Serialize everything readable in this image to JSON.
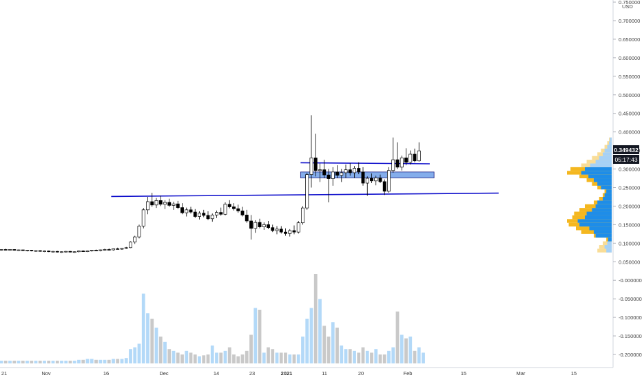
{
  "header": {
    "currency": "USD"
  },
  "badges": {
    "price": "0.349432",
    "countdown": "05:17:43"
  },
  "chart_data": {
    "type": "candlestick",
    "price_axis": {
      "labels": [
        "0.750000",
        "0.700000",
        "0.650000",
        "0.600000",
        "0.550000",
        "0.500000",
        "0.450000",
        "0.400000",
        "0.350000",
        "0.300000",
        "0.250000",
        "0.200000",
        "0.150000",
        "0.100000",
        "0.050000",
        "-0.000000",
        "-0.050000",
        "-0.100000",
        "-0.150000",
        "-0.200000"
      ],
      "values": [
        0.75,
        0.7,
        0.65,
        0.6,
        0.55,
        0.5,
        0.45,
        0.4,
        0.35,
        0.3,
        0.25,
        0.2,
        0.15,
        0.1,
        0.05,
        0,
        -0.05,
        -0.1,
        -0.15,
        -0.2
      ],
      "range": [
        -0.22,
        0.76
      ]
    },
    "time_axis": {
      "labels": [
        "21",
        "Nov",
        "16",
        "Dec",
        "14",
        "23",
        "2021",
        "11",
        "20",
        "Feb",
        "15",
        "Mar",
        "15"
      ],
      "bold": [
        "2021"
      ]
    },
    "candles": [
      [
        0.082,
        0.084,
        0.08,
        0.083
      ],
      [
        0.083,
        0.085,
        0.081,
        0.082
      ],
      [
        0.082,
        0.084,
        0.08,
        0.083
      ],
      [
        0.083,
        0.084,
        0.08,
        0.081
      ],
      [
        0.081,
        0.083,
        0.079,
        0.082
      ],
      [
        0.082,
        0.083,
        0.079,
        0.08
      ],
      [
        0.08,
        0.082,
        0.078,
        0.081
      ],
      [
        0.081,
        0.082,
        0.078,
        0.079
      ],
      [
        0.079,
        0.081,
        0.077,
        0.08
      ],
      [
        0.08,
        0.081,
        0.077,
        0.078
      ],
      [
        0.078,
        0.08,
        0.076,
        0.079
      ],
      [
        0.079,
        0.08,
        0.076,
        0.077
      ],
      [
        0.077,
        0.079,
        0.075,
        0.078
      ],
      [
        0.078,
        0.079,
        0.075,
        0.076
      ],
      [
        0.076,
        0.078,
        0.074,
        0.077
      ],
      [
        0.077,
        0.079,
        0.075,
        0.078
      ],
      [
        0.078,
        0.079,
        0.075,
        0.076
      ],
      [
        0.076,
        0.078,
        0.074,
        0.077
      ],
      [
        0.077,
        0.08,
        0.075,
        0.079
      ],
      [
        0.079,
        0.081,
        0.077,
        0.078
      ],
      [
        0.078,
        0.08,
        0.076,
        0.079
      ],
      [
        0.079,
        0.082,
        0.077,
        0.081
      ],
      [
        0.081,
        0.083,
        0.079,
        0.08
      ],
      [
        0.08,
        0.083,
        0.078,
        0.082
      ],
      [
        0.082,
        0.085,
        0.08,
        0.083
      ],
      [
        0.083,
        0.086,
        0.081,
        0.082
      ],
      [
        0.082,
        0.086,
        0.08,
        0.085
      ],
      [
        0.085,
        0.088,
        0.083,
        0.084
      ],
      [
        0.084,
        0.087,
        0.082,
        0.086
      ],
      [
        0.086,
        0.09,
        0.084,
        0.088
      ],
      [
        0.088,
        0.105,
        0.087,
        0.103
      ],
      [
        0.103,
        0.12,
        0.098,
        0.117
      ],
      [
        0.117,
        0.15,
        0.113,
        0.146
      ],
      [
        0.146,
        0.195,
        0.14,
        0.19
      ],
      [
        0.19,
        0.225,
        0.178,
        0.212
      ],
      [
        0.212,
        0.236,
        0.198,
        0.203
      ],
      [
        0.203,
        0.222,
        0.195,
        0.215
      ],
      [
        0.215,
        0.228,
        0.2,
        0.205
      ],
      [
        0.205,
        0.216,
        0.192,
        0.21
      ],
      [
        0.21,
        0.22,
        0.198,
        0.202
      ],
      [
        0.202,
        0.212,
        0.19,
        0.206
      ],
      [
        0.206,
        0.214,
        0.192,
        0.196
      ],
      [
        0.196,
        0.208,
        0.178,
        0.182
      ],
      [
        0.182,
        0.196,
        0.172,
        0.19
      ],
      [
        0.19,
        0.198,
        0.18,
        0.184
      ],
      [
        0.184,
        0.192,
        0.168,
        0.172
      ],
      [
        0.172,
        0.186,
        0.164,
        0.181
      ],
      [
        0.181,
        0.19,
        0.17,
        0.175
      ],
      [
        0.175,
        0.186,
        0.162,
        0.166
      ],
      [
        0.166,
        0.18,
        0.158,
        0.176
      ],
      [
        0.176,
        0.188,
        0.168,
        0.183
      ],
      [
        0.183,
        0.196,
        0.174,
        0.178
      ],
      [
        0.178,
        0.21,
        0.175,
        0.205
      ],
      [
        0.205,
        0.216,
        0.194,
        0.198
      ],
      [
        0.198,
        0.208,
        0.188,
        0.193
      ],
      [
        0.193,
        0.204,
        0.182,
        0.187
      ],
      [
        0.187,
        0.198,
        0.172,
        0.176
      ],
      [
        0.176,
        0.19,
        0.155,
        0.16
      ],
      [
        0.16,
        0.176,
        0.11,
        0.14
      ],
      [
        0.14,
        0.162,
        0.128,
        0.156
      ],
      [
        0.156,
        0.166,
        0.14,
        0.144
      ],
      [
        0.144,
        0.156,
        0.136,
        0.15
      ],
      [
        0.15,
        0.16,
        0.138,
        0.142
      ],
      [
        0.142,
        0.15,
        0.13,
        0.134
      ],
      [
        0.134,
        0.146,
        0.124,
        0.138
      ],
      [
        0.138,
        0.146,
        0.126,
        0.13
      ],
      [
        0.13,
        0.14,
        0.12,
        0.126
      ],
      [
        0.126,
        0.138,
        0.118,
        0.134
      ],
      [
        0.134,
        0.148,
        0.124,
        0.13
      ],
      [
        0.13,
        0.16,
        0.126,
        0.155
      ],
      [
        0.155,
        0.2,
        0.15,
        0.195
      ],
      [
        0.195,
        0.29,
        0.19,
        0.285
      ],
      [
        0.285,
        0.445,
        0.25,
        0.33
      ],
      [
        0.33,
        0.395,
        0.28,
        0.296
      ],
      [
        0.296,
        0.315,
        0.265,
        0.298
      ],
      [
        0.298,
        0.325,
        0.275,
        0.284
      ],
      [
        0.284,
        0.3,
        0.21,
        0.274
      ],
      [
        0.274,
        0.305,
        0.255,
        0.292
      ],
      [
        0.292,
        0.31,
        0.275,
        0.283
      ],
      [
        0.283,
        0.3,
        0.265,
        0.29
      ],
      [
        0.29,
        0.312,
        0.276,
        0.298
      ],
      [
        0.298,
        0.316,
        0.282,
        0.29
      ],
      [
        0.29,
        0.308,
        0.276,
        0.302
      ],
      [
        0.302,
        0.318,
        0.286,
        0.292
      ],
      [
        0.292,
        0.305,
        0.255,
        0.262
      ],
      [
        0.262,
        0.28,
        0.228,
        0.275
      ],
      [
        0.275,
        0.288,
        0.262,
        0.268
      ],
      [
        0.268,
        0.282,
        0.256,
        0.276
      ],
      [
        0.276,
        0.285,
        0.262,
        0.266
      ],
      [
        0.266,
        0.272,
        0.23,
        0.24
      ],
      [
        0.24,
        0.305,
        0.236,
        0.296
      ],
      [
        0.296,
        0.385,
        0.29,
        0.325
      ],
      [
        0.325,
        0.372,
        0.3,
        0.305
      ],
      [
        0.305,
        0.336,
        0.296,
        0.33
      ],
      [
        0.33,
        0.356,
        0.31,
        0.318
      ],
      [
        0.318,
        0.35,
        0.312,
        0.34
      ],
      [
        0.34,
        0.355,
        0.318,
        0.322
      ],
      [
        0.322,
        0.372,
        0.32,
        0.349
      ]
    ],
    "volume": [
      0.03,
      0.03,
      0.03,
      0.03,
      0.03,
      0.03,
      0.03,
      0.03,
      0.03,
      0.03,
      0.03,
      0.03,
      0.03,
      0.03,
      0.03,
      0.03,
      0.03,
      0.03,
      0.04,
      0.04,
      0.05,
      0.05,
      0.04,
      0.04,
      0.04,
      0.04,
      0.05,
      0.05,
      0.05,
      0.06,
      0.16,
      0.18,
      0.22,
      0.78,
      0.56,
      0.5,
      0.4,
      0.3,
      0.24,
      0.16,
      0.14,
      0.12,
      0.1,
      0.14,
      0.12,
      0.1,
      0.08,
      0.09,
      0.1,
      0.2,
      0.12,
      0.12,
      0.14,
      0.18,
      0.1,
      0.08,
      0.1,
      0.14,
      0.32,
      0.62,
      0.6,
      0.12,
      0.18,
      0.16,
      0.12,
      0.12,
      0.12,
      0.1,
      0.1,
      0.1,
      0.3,
      0.5,
      0.62,
      1.0,
      0.72,
      0.42,
      0.3,
      0.46,
      0.4,
      0.2,
      0.16,
      0.16,
      0.14,
      0.12,
      0.18,
      0.14,
      0.12,
      0.16,
      0.1,
      0.1,
      0.14,
      0.18,
      0.58,
      0.32,
      0.28,
      0.3,
      0.14,
      0.18,
      0.12
    ],
    "volume_colors": {
      "up": "#b3d9f8",
      "down": "#c9c9c9"
    },
    "horizontal_lines": [
      {
        "kind": "support",
        "color": "#1010cc",
        "x0": 25.5,
        "y0": 0.226,
        "x1": 115.5,
        "y1": 0.235
      },
      {
        "kind": "resistance",
        "color": "#1010cc",
        "x0": 69.5,
        "y0": 0.317,
        "x1": 99.5,
        "y1": 0.314
      }
    ],
    "zone": {
      "from_index": 69.5,
      "to_index": 100.5,
      "low": 0.276,
      "high": 0.292,
      "color": "#6f9fe8"
    },
    "volume_profile_colors": {
      "buy": "#1e8de8",
      "sell": "#f4b71f"
    },
    "grid": false,
    "legend": "none"
  }
}
